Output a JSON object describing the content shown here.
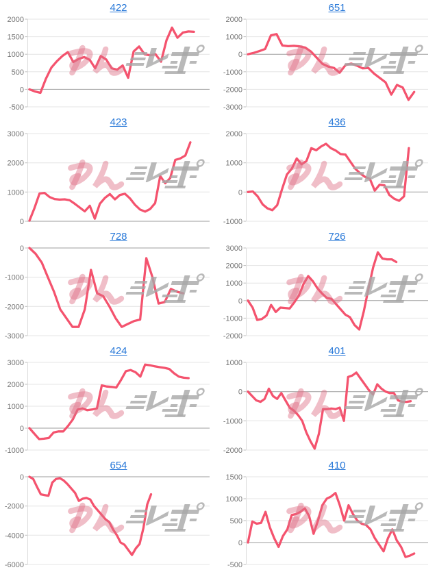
{
  "page": {
    "background": "#ffffff"
  },
  "style": {
    "line_color": "#f4536e",
    "link_color": "#2878d8",
    "grid_color": "#e4e4e4",
    "zero_line_color": "#9e9e9e",
    "axis_color": "#dcdcdc",
    "tick_mark_color": "#bdbdbd",
    "tick_label_color": "#757575",
    "watermark_pink": "#dd6e84",
    "watermark_gray": "#a7a7a7"
  },
  "watermark": {
    "text": "みんレポ",
    "pink_part": "みん",
    "gray_part": "レポ"
  },
  "chart_data": [
    {
      "type": "line",
      "title": "422",
      "xlabel": "",
      "ylabel": "",
      "grid": true,
      "legend": "none",
      "ylim": [
        -500,
        2000
      ],
      "yticks": [
        2000,
        1500,
        1000,
        500,
        0,
        -500
      ],
      "x_end_fraction": 0.92,
      "values": [
        0,
        -60,
        -100,
        300,
        620,
        800,
        950,
        1060,
        780,
        870,
        920,
        840,
        600,
        950,
        850,
        600,
        560,
        680,
        330,
        1080,
        1220,
        1000,
        970,
        1000,
        790,
        1400,
        1760,
        1470,
        1620,
        1650,
        1640
      ]
    },
    {
      "type": "line",
      "title": "651",
      "xlabel": "",
      "ylabel": "",
      "grid": true,
      "legend": "none",
      "ylim": [
        -3000,
        2000
      ],
      "yticks": [
        2000,
        1000,
        0,
        -1000,
        -2000,
        -3000
      ],
      "x_end_fraction": 0.93,
      "values": [
        0,
        80,
        180,
        300,
        1080,
        1150,
        500,
        460,
        480,
        450,
        380,
        150,
        -200,
        -550,
        -700,
        -780,
        -1050,
        -620,
        -530,
        -650,
        -800,
        -780,
        -1100,
        -1350,
        -1600,
        -2300,
        -1750,
        -1900,
        -2600,
        -2150
      ]
    },
    {
      "type": "line",
      "title": "423",
      "xlabel": "",
      "ylabel": "",
      "grid": true,
      "legend": "none",
      "ylim": [
        0,
        3000
      ],
      "yticks": [
        3000,
        2000,
        1000,
        0
      ],
      "x_end_fraction": 0.9,
      "values": [
        20,
        450,
        950,
        970,
        830,
        760,
        740,
        750,
        720,
        600,
        470,
        340,
        530,
        90,
        600,
        800,
        930,
        750,
        900,
        940,
        780,
        560,
        400,
        330,
        420,
        620,
        1550,
        1300,
        1480,
        2100,
        2150,
        2250,
        2700
      ]
    },
    {
      "type": "line",
      "title": "436",
      "xlabel": "",
      "ylabel": "",
      "grid": true,
      "legend": "none",
      "ylim": [
        -1000,
        2000
      ],
      "yticks": [
        2000,
        1000,
        0,
        -1000
      ],
      "x_end_fraction": 0.9,
      "values": [
        0,
        20,
        -150,
        -420,
        -560,
        -620,
        -450,
        100,
        600,
        800,
        1150,
        950,
        1060,
        1500,
        1430,
        1560,
        1650,
        1500,
        1420,
        1300,
        1280,
        1040,
        800,
        640,
        520,
        450,
        50,
        250,
        230,
        -100,
        -230,
        -300,
        -150,
        1500
      ]
    },
    {
      "type": "line",
      "title": "728",
      "xlabel": "",
      "ylabel": "",
      "grid": true,
      "legend": "none",
      "ylim": [
        -3000,
        0
      ],
      "yticks": [
        0,
        -1000,
        -2000,
        -3000
      ],
      "x_end_fraction": 0.86,
      "values": [
        0,
        -200,
        -500,
        -1000,
        -1500,
        -2100,
        -2400,
        -2700,
        -2700,
        -2100,
        -750,
        -1550,
        -1650,
        -2000,
        -2400,
        -2700,
        -2600,
        -2500,
        -2450,
        -350,
        -1000,
        -1900,
        -1850,
        -1400,
        -1500,
        -1550
      ]
    },
    {
      "type": "line",
      "title": "726",
      "xlabel": "",
      "ylabel": "",
      "grid": true,
      "legend": "none",
      "ylim": [
        -2000,
        3000
      ],
      "yticks": [
        3000,
        2000,
        1000,
        0,
        -1000,
        -2000
      ],
      "x_end_fraction": 0.83,
      "values": [
        0,
        -400,
        -1100,
        -1050,
        -850,
        -250,
        -650,
        -400,
        -420,
        -450,
        -100,
        300,
        950,
        1400,
        1100,
        700,
        400,
        150,
        100,
        -200,
        -500,
        -800,
        -950,
        -1400,
        -1650,
        -600,
        700,
        1900,
        2750,
        2400,
        2350,
        2350,
        2200
      ]
    },
    {
      "type": "line",
      "title": "424",
      "xlabel": "",
      "ylabel": "",
      "grid": true,
      "legend": "none",
      "ylim": [
        -1000,
        3000
      ],
      "yticks": [
        3000,
        2000,
        1000,
        0,
        -1000
      ],
      "x_end_fraction": 0.89,
      "values": [
        0,
        -250,
        -500,
        -480,
        -450,
        -200,
        -150,
        -150,
        100,
        400,
        850,
        900,
        820,
        850,
        900,
        1950,
        1900,
        1880,
        1850,
        2200,
        2600,
        2650,
        2550,
        2350,
        2900,
        2870,
        2820,
        2780,
        2750,
        2700,
        2500,
        2350,
        2300,
        2280
      ]
    },
    {
      "type": "line",
      "title": "401",
      "xlabel": "",
      "ylabel": "",
      "grid": true,
      "legend": "none",
      "ylim": [
        -2000,
        1000
      ],
      "yticks": [
        1000,
        0,
        -1000,
        -2000
      ],
      "x_end_fraction": 0.91,
      "values": [
        0,
        -150,
        -300,
        -350,
        -250,
        100,
        -150,
        -250,
        -50,
        -300,
        -550,
        -650,
        -800,
        -1000,
        -1400,
        -1700,
        -1950,
        -1450,
        -600,
        -600,
        -580,
        -600,
        -550,
        -1000,
        500,
        550,
        650,
        450,
        250,
        50,
        -100,
        250,
        100,
        0,
        -50,
        -50,
        -300,
        -350,
        -350,
        -330
      ]
    },
    {
      "type": "line",
      "title": "654",
      "xlabel": "",
      "ylabel": "",
      "grid": true,
      "legend": "none",
      "ylim": [
        -6000,
        0
      ],
      "yticks": [
        0,
        -2000,
        -4000,
        -6000
      ],
      "x_end_fraction": 0.68,
      "values": [
        0,
        -150,
        -700,
        -1200,
        -1250,
        -1300,
        -400,
        -150,
        -100,
        -250,
        -500,
        -800,
        -1100,
        -1650,
        -1500,
        -1450,
        -1550,
        -2000,
        -2300,
        -2600,
        -2900,
        -3100,
        -3600,
        -4000,
        -4500,
        -4650,
        -5000,
        -5350,
        -4900,
        -4600,
        -3500,
        -1900,
        -1200
      ]
    },
    {
      "type": "line",
      "title": "410",
      "xlabel": "",
      "ylabel": "",
      "grid": true,
      "legend": "none",
      "ylim": [
        -500,
        1500
      ],
      "yticks": [
        1500,
        1000,
        500,
        0,
        -500
      ],
      "x_end_fraction": 0.93,
      "values": [
        0,
        480,
        430,
        450,
        700,
        350,
        100,
        -100,
        150,
        300,
        630,
        650,
        700,
        780,
        600,
        200,
        500,
        850,
        1000,
        1050,
        1130,
        850,
        500,
        850,
        650,
        500,
        430,
        400,
        300,
        100,
        -50,
        -200,
        100,
        300,
        50,
        -100,
        -330,
        -300,
        -250
      ]
    }
  ]
}
